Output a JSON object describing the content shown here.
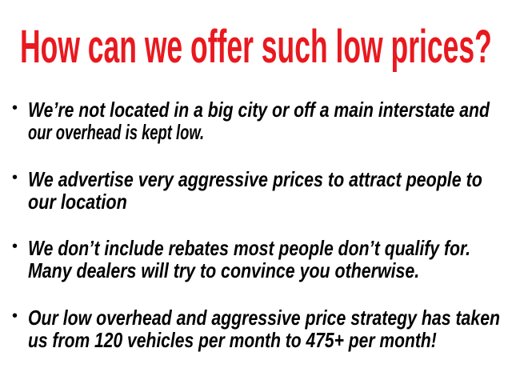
{
  "slide": {
    "title": "How can we offer such low prices?",
    "title_color": "#e8191f",
    "bullets": [
      {
        "lines": [
          "We’re not located in a big city or off a main interstate and",
          "our overhead is kept low."
        ]
      },
      {
        "lines": [
          "We advertise very aggressive prices to attract people to",
          "our location"
        ]
      },
      {
        "lines": [
          "We don’t include rebates most people don’t qualify for.",
          "Many dealers will try to convince you otherwise."
        ]
      },
      {
        "lines": [
          "Our low overhead and aggressive price strategy has taken",
          "us from 120 vehicles per month to 475+ per month!"
        ]
      }
    ]
  }
}
